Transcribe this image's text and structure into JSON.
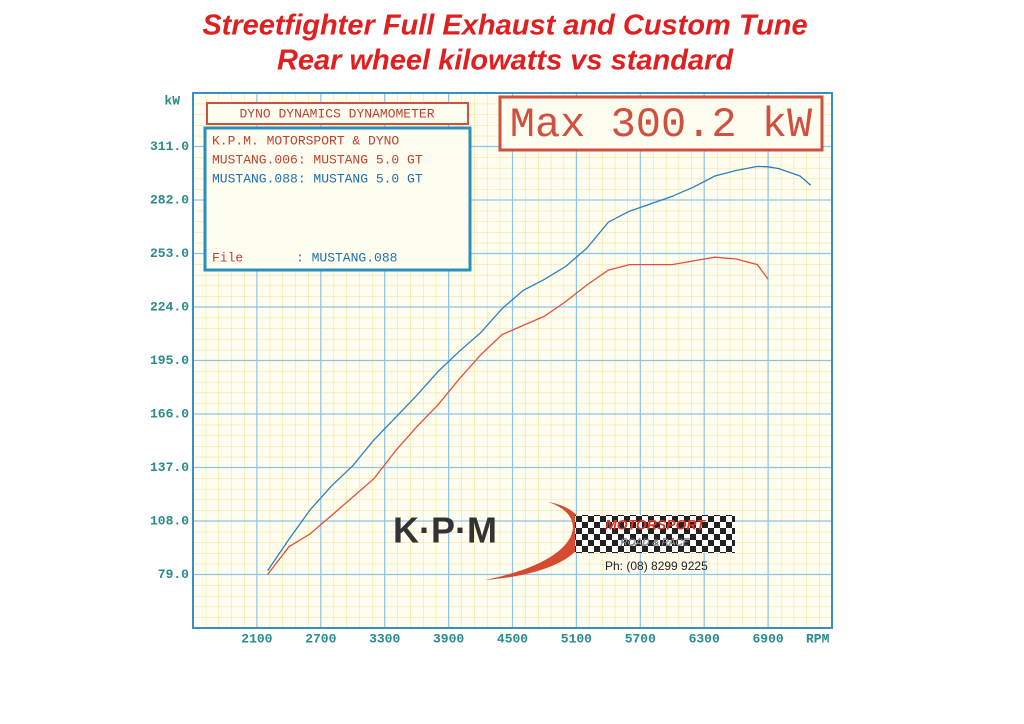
{
  "chart_data": {
    "type": "line",
    "title": "Streetfighter Full Exhaust and Custom Tune",
    "subtitle": "Rear wheel kilowatts vs standard",
    "ylabel": "kW",
    "xlabel": "RPM",
    "info_header": "DYNO DYNAMICS DYNAMOMETER",
    "info_title": "K.P.M. MOTORSPORT & DYNO",
    "file_label": "File",
    "file_value": ": MUSTANG.088",
    "annotation": "Max 300.2 kW",
    "logo": {
      "letters": "K·P·M",
      "brand": "MOTORSPORT",
      "tagline": "ROAD & RACE",
      "phone": "Ph: (08) 8299 9225"
    },
    "x": [
      2200,
      2400,
      2600,
      2800,
      3000,
      3200,
      3400,
      3600,
      3800,
      4000,
      4200,
      4400,
      4600,
      4800,
      5000,
      5200,
      5400,
      5600,
      5800,
      6000,
      6200,
      6400,
      6600,
      6800,
      6900,
      7000,
      7200,
      7300
    ],
    "series": [
      {
        "name": "MUSTANG.006: MUSTANG 5.0 GT",
        "color": "#e0503a",
        "values": [
          79,
          94,
          101,
          111,
          121,
          131,
          146,
          159,
          171,
          185,
          198,
          209,
          214,
          219,
          227,
          236,
          244,
          247,
          247,
          247,
          249,
          251,
          250,
          247,
          239,
          null,
          null,
          null
        ]
      },
      {
        "name": "MUSTANG.088: MUSTANG 5.0 GT",
        "color": "#2a7fc0",
        "values": [
          81,
          98,
          114,
          127,
          138,
          152,
          164,
          176,
          189,
          200,
          210,
          223,
          233,
          239,
          246,
          256,
          270,
          276,
          280,
          284,
          289,
          295,
          298,
          300.2,
          300,
          299,
          295,
          290
        ]
      }
    ],
    "xlim": [
      1500,
      7500
    ],
    "xticks": [
      2100,
      2700,
      3300,
      3900,
      4500,
      5100,
      5700,
      6300,
      6900
    ],
    "ylim": [
      50,
      340
    ],
    "yticks": [
      {
        "value": 79,
        "label": "79.0"
      },
      {
        "value": 108,
        "label": "108.0"
      },
      {
        "value": 137,
        "label": "137.0"
      },
      {
        "value": 166,
        "label": "166.0"
      },
      {
        "value": 195,
        "label": "195.0"
      },
      {
        "value": 224,
        "label": "224.0"
      },
      {
        "value": 253,
        "label": "253.0"
      },
      {
        "value": 282,
        "label": "282.0"
      },
      {
        "value": 311,
        "label": "311.0"
      }
    ],
    "grid": true
  }
}
